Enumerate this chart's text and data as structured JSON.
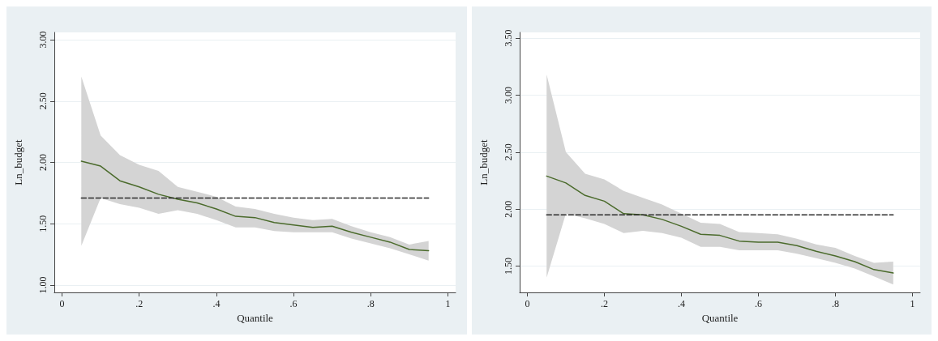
{
  "chart_data": [
    {
      "type": "line",
      "xlabel": "Quantile",
      "ylabel": "Ln_budget",
      "xlim": [
        -0.02,
        1.02
      ],
      "ylim": [
        0.94,
        3.06
      ],
      "xticks": [
        {
          "value": 0,
          "label": "0"
        },
        {
          "value": 0.2,
          "label": ".2"
        },
        {
          "value": 0.4,
          "label": ".4"
        },
        {
          "value": 0.6,
          "label": ".6"
        },
        {
          "value": 0.8,
          "label": ".8"
        },
        {
          "value": 1,
          "label": "1"
        }
      ],
      "yticks": [
        {
          "value": 1,
          "label": "1.00"
        },
        {
          "value": 1.5,
          "label": "1.50"
        },
        {
          "value": 2,
          "label": "2.00"
        },
        {
          "value": 2.5,
          "label": "2.50"
        },
        {
          "value": 3,
          "label": "3.00"
        }
      ],
      "grid": "y",
      "marker": "none",
      "series": [
        {
          "color": "#4b6b2c",
          "line_style": "solid",
          "x": [
            0.05,
            0.1,
            0.15,
            0.2,
            0.25,
            0.3,
            0.35,
            0.4,
            0.45,
            0.5,
            0.55,
            0.6,
            0.65,
            0.7,
            0.75,
            0.8,
            0.85,
            0.9,
            0.95
          ],
          "values": [
            2.01,
            1.97,
            1.85,
            1.8,
            1.74,
            1.7,
            1.67,
            1.62,
            1.56,
            1.55,
            1.51,
            1.49,
            1.47,
            1.48,
            1.43,
            1.39,
            1.35,
            1.29,
            1.28
          ],
          "lower": [
            1.32,
            1.71,
            1.66,
            1.63,
            1.58,
            1.61,
            1.58,
            1.53,
            1.47,
            1.47,
            1.44,
            1.43,
            1.43,
            1.43,
            1.38,
            1.34,
            1.3,
            1.25,
            1.2
          ],
          "upper": [
            2.7,
            2.22,
            2.06,
            1.98,
            1.93,
            1.8,
            1.76,
            1.72,
            1.64,
            1.62,
            1.58,
            1.55,
            1.53,
            1.54,
            1.48,
            1.43,
            1.39,
            1.33,
            1.36
          ]
        },
        {
          "color": "#2b2b2b",
          "line_style": "dashed",
          "x": [
            0.05,
            0.95
          ],
          "values": [
            1.71,
            1.71
          ]
        }
      ]
    },
    {
      "type": "line",
      "xlabel": "Quantile",
      "ylabel": "Ln_budget",
      "xlim": [
        -0.02,
        1.02
      ],
      "ylim": [
        1.27,
        3.55
      ],
      "xticks": [
        {
          "value": 0,
          "label": "0"
        },
        {
          "value": 0.2,
          "label": ".2"
        },
        {
          "value": 0.4,
          "label": ".4"
        },
        {
          "value": 0.6,
          "label": ".6"
        },
        {
          "value": 0.8,
          "label": ".8"
        },
        {
          "value": 1,
          "label": "1"
        }
      ],
      "yticks": [
        {
          "value": 1.5,
          "label": "1.50"
        },
        {
          "value": 2,
          "label": "2.00"
        },
        {
          "value": 2.5,
          "label": "2.50"
        },
        {
          "value": 3,
          "label": "3.00"
        },
        {
          "value": 3.5,
          "label": "3.50"
        }
      ],
      "grid": "y",
      "marker": "none",
      "series": [
        {
          "color": "#4b6b2c",
          "line_style": "solid",
          "x": [
            0.05,
            0.1,
            0.15,
            0.2,
            0.25,
            0.3,
            0.35,
            0.4,
            0.45,
            0.5,
            0.55,
            0.6,
            0.65,
            0.7,
            0.75,
            0.8,
            0.85,
            0.9,
            0.95
          ],
          "values": [
            2.29,
            2.23,
            2.12,
            2.07,
            1.96,
            1.95,
            1.91,
            1.85,
            1.78,
            1.77,
            1.72,
            1.71,
            1.71,
            1.68,
            1.63,
            1.59,
            1.54,
            1.47,
            1.44
          ],
          "lower": [
            1.4,
            1.96,
            1.92,
            1.87,
            1.79,
            1.81,
            1.79,
            1.75,
            1.67,
            1.67,
            1.64,
            1.64,
            1.64,
            1.61,
            1.57,
            1.53,
            1.48,
            1.41,
            1.34
          ],
          "upper": [
            3.18,
            2.5,
            2.31,
            2.26,
            2.16,
            2.1,
            2.04,
            1.96,
            1.88,
            1.87,
            1.8,
            1.79,
            1.78,
            1.74,
            1.69,
            1.66,
            1.59,
            1.53,
            1.54
          ]
        },
        {
          "color": "#2b2b2b",
          "line_style": "dashed",
          "x": [
            0.05,
            0.95
          ],
          "values": [
            1.95,
            1.95
          ]
        }
      ]
    }
  ]
}
